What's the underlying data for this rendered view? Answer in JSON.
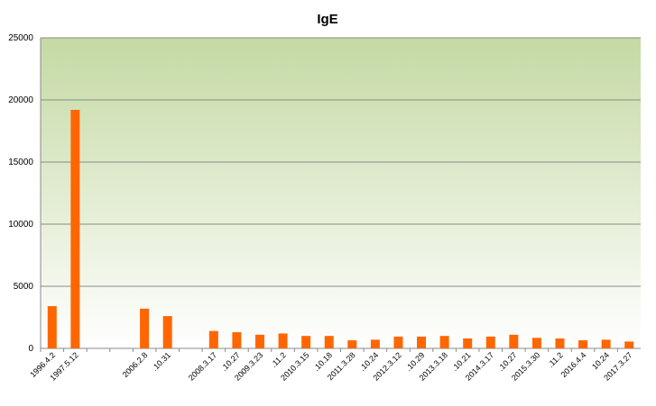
{
  "chart_data": {
    "type": "bar",
    "title": "IgE",
    "categories": [
      "1996.4.2",
      "1997.5.12",
      null,
      null,
      "2006.2.8",
      ".10.31",
      null,
      "2008.3.17",
      ".10.27",
      "2009.3.23",
      ".11.2",
      "2010.3.15",
      ".10.18",
      "2011.3.28",
      ".10.24",
      "2012.3.12",
      ".10.29",
      "2013.3.18",
      ".10.21",
      "2014.3.17",
      ".10.27",
      "2015.3.30",
      ".11.2",
      "2016.4.4",
      "10.24",
      "2017.3.27"
    ],
    "values": [
      3400,
      19200,
      null,
      null,
      3200,
      2600,
      null,
      1400,
      1300,
      1100,
      1200,
      1000,
      1000,
      650,
      700,
      950,
      950,
      1000,
      800,
      950,
      1100,
      850,
      800,
      650,
      700,
      550
    ],
    "color": "#ff6600",
    "ylim": [
      0,
      25000
    ],
    "yticks": [
      0,
      5000,
      10000,
      15000,
      20000,
      25000
    ],
    "grid": true
  }
}
